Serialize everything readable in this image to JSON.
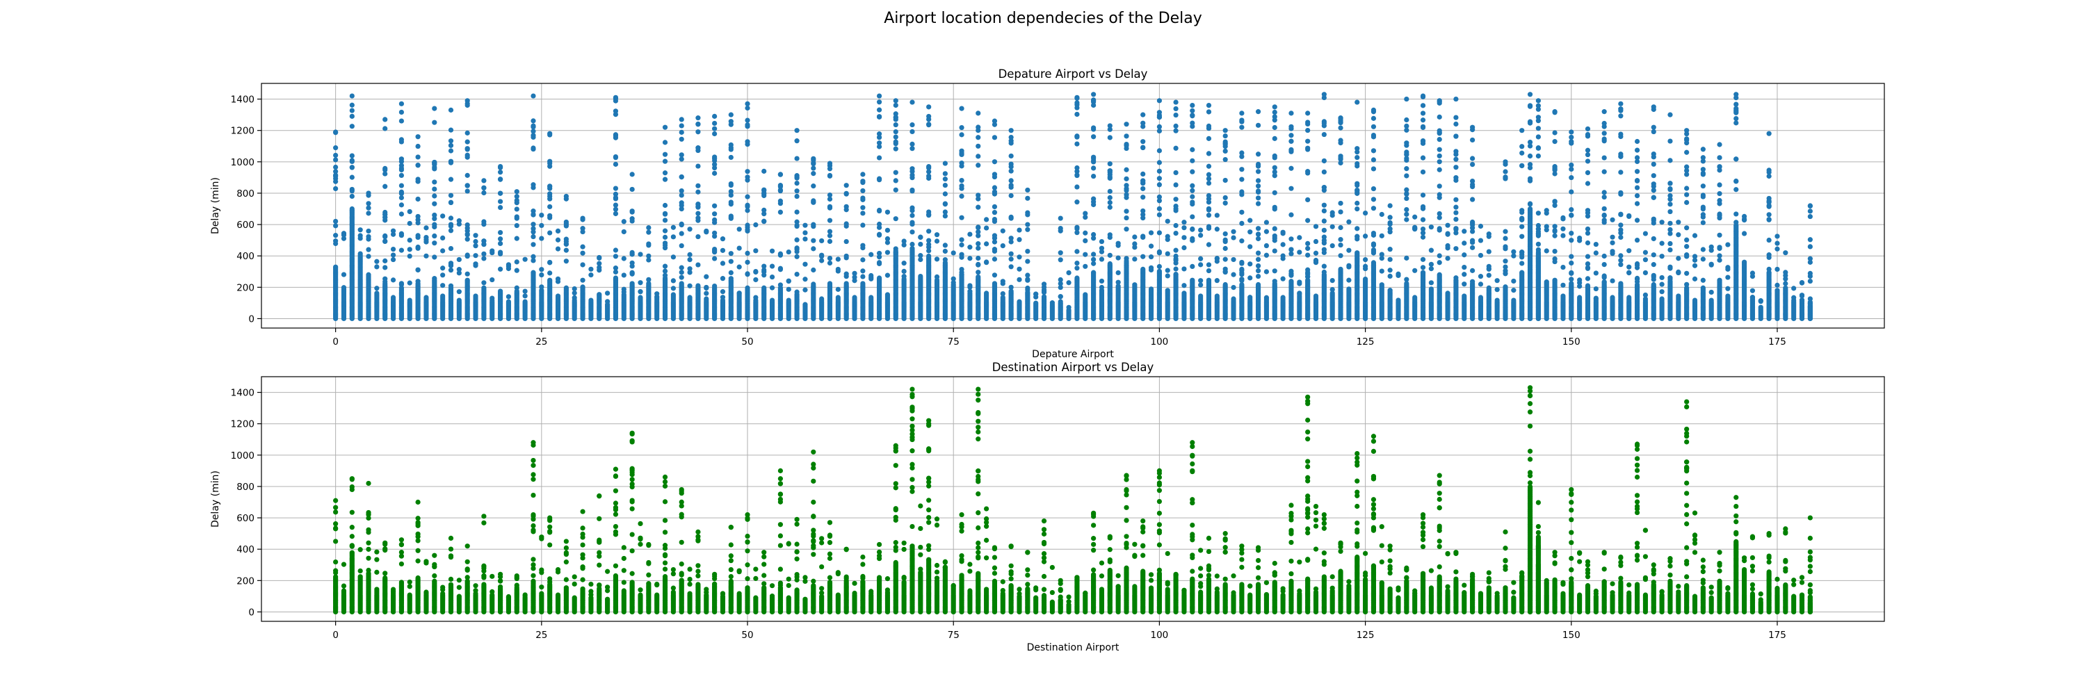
{
  "figure": {
    "suptitle": "Airport location dependecies of the Delay"
  },
  "chart_data": [
    {
      "type": "scatter",
      "title": "Depature Airport vs Delay",
      "xlabel": "Depature Airport",
      "ylabel": "Delay (min)",
      "xlim": [
        -9,
        188
      ],
      "ylim": [
        -60,
        1500
      ],
      "xticks": [
        0,
        25,
        50,
        75,
        100,
        125,
        150,
        175
      ],
      "yticks": [
        0,
        200,
        400,
        600,
        800,
        1000,
        1200,
        1400
      ],
      "grid": true,
      "color": "#1f77b4",
      "series": [
        {
          "x": [
            0,
            2,
            4,
            6,
            8,
            10,
            12,
            14,
            16,
            18,
            20,
            22,
            24,
            26,
            28,
            30,
            32,
            34,
            36,
            38,
            40,
            42,
            44,
            46,
            48,
            50,
            52,
            54,
            56,
            58,
            60,
            62,
            64,
            66,
            68,
            70,
            72,
            74,
            76,
            78,
            80,
            82,
            84,
            86,
            88,
            90,
            92,
            94,
            96,
            98,
            100,
            102,
            104,
            106,
            108,
            110,
            112,
            114,
            116,
            118,
            120,
            122,
            124,
            126,
            128,
            130,
            132,
            134,
            136,
            138,
            140,
            142,
            144,
            145,
            146,
            148,
            150,
            152,
            154,
            156,
            158,
            160,
            162,
            164,
            166,
            168,
            170,
            172,
            174,
            176,
            178,
            179
          ],
          "y_max": [
            1190,
            1420,
            800,
            1270,
            1370,
            1160,
            1340,
            1330,
            1390,
            880,
            970,
            810,
            1420,
            1180,
            780,
            640,
            390,
            1410,
            920,
            580,
            1220,
            1270,
            1280,
            1290,
            1300,
            1370,
            940,
            920,
            1200,
            1020,
            990,
            850,
            920,
            1420,
            1390,
            1380,
            1350,
            990,
            1340,
            1310,
            1260,
            1200,
            820,
            220,
            640,
            1410,
            1430,
            1230,
            1240,
            1300,
            1390,
            1380,
            1360,
            1360,
            1200,
            1310,
            1320,
            1350,
            1310,
            1310,
            1430,
            1280,
            1380,
            1330,
            720,
            1400,
            1420,
            1390,
            1400,
            1220,
            540,
            1000,
            1200,
            1430,
            1390,
            1320,
            1190,
            1210,
            1320,
            1370,
            1130,
            1350,
            1300,
            1200,
            1080,
            1110,
            1430,
            290,
            1180,
            420,
            230,
            720
          ],
          "y_dense": [
            330,
            700,
            280,
            230,
            200,
            230,
            250,
            200,
            250,
            200,
            180,
            180,
            300,
            250,
            200,
            200,
            160,
            260,
            230,
            230,
            260,
            230,
            210,
            200,
            250,
            200,
            200,
            200,
            160,
            210,
            230,
            230,
            230,
            260,
            420,
            450,
            400,
            360,
            280,
            270,
            230,
            180,
            170,
            140,
            100,
            260,
            300,
            350,
            360,
            320,
            300,
            280,
            250,
            250,
            220,
            220,
            220,
            230,
            240,
            250,
            280,
            320,
            420,
            360,
            180,
            230,
            300,
            280,
            240,
            230,
            200,
            200,
            300,
            700,
            400,
            250,
            230,
            210,
            230,
            230,
            220,
            220,
            240,
            200,
            200,
            250,
            600,
            130,
            300,
            200,
            120,
            110
          ]
        }
      ]
    },
    {
      "type": "scatter",
      "title": "Destination Airport vs Delay",
      "xlabel": "Destination Airport",
      "ylabel": "Delay (min)",
      "xlim": [
        -9,
        188
      ],
      "ylim": [
        -60,
        1500
      ],
      "xticks": [
        0,
        25,
        50,
        75,
        100,
        125,
        150,
        175
      ],
      "yticks": [
        0,
        200,
        400,
        600,
        800,
        1000,
        1200,
        1400
      ],
      "grid": true,
      "color": "#008000",
      "series": [
        {
          "x": [
            0,
            2,
            4,
            6,
            8,
            10,
            12,
            14,
            16,
            18,
            20,
            22,
            24,
            26,
            28,
            30,
            32,
            34,
            36,
            38,
            40,
            42,
            44,
            46,
            48,
            50,
            52,
            54,
            56,
            58,
            60,
            62,
            64,
            66,
            68,
            70,
            72,
            74,
            76,
            78,
            80,
            82,
            84,
            86,
            88,
            90,
            92,
            94,
            96,
            98,
            100,
            102,
            104,
            106,
            108,
            110,
            112,
            114,
            116,
            118,
            120,
            122,
            124,
            126,
            128,
            130,
            132,
            134,
            136,
            138,
            140,
            142,
            144,
            145,
            146,
            148,
            150,
            152,
            154,
            156,
            158,
            160,
            162,
            164,
            166,
            168,
            170,
            172,
            174,
            176,
            178,
            179
          ],
          "y_max": [
            710,
            850,
            820,
            440,
            460,
            700,
            360,
            470,
            420,
            610,
            240,
            230,
            1080,
            600,
            450,
            640,
            740,
            910,
            1140,
            430,
            860,
            780,
            510,
            240,
            540,
            620,
            380,
            900,
            590,
            1020,
            570,
            400,
            350,
            430,
            1060,
            1420,
            1220,
            320,
            620,
            1420,
            410,
            420,
            380,
            580,
            200,
            220,
            630,
            480,
            870,
            580,
            900,
            240,
            1080,
            470,
            500,
            420,
            410,
            310,
            680,
            1370,
            620,
            440,
            1010,
            1120,
            420,
            280,
            620,
            870,
            380,
            240,
            250,
            510,
            250,
            1430,
            420,
            380,
            780,
            320,
            380,
            350,
            1070,
            300,
            340,
            1340,
            330,
            380,
            730,
            480,
            500,
            530,
            220,
            600
          ],
          "y_dense": [
            230,
            380,
            250,
            220,
            190,
            220,
            200,
            170,
            200,
            180,
            150,
            150,
            200,
            180,
            160,
            150,
            140,
            230,
            190,
            180,
            220,
            200,
            180,
            170,
            200,
            160,
            160,
            160,
            140,
            170,
            190,
            190,
            190,
            210,
            320,
            420,
            330,
            280,
            230,
            250,
            200,
            170,
            150,
            110,
            80,
            200,
            240,
            270,
            280,
            260,
            250,
            230,
            210,
            210,
            180,
            180,
            180,
            190,
            200,
            210,
            230,
            260,
            350,
            300,
            150,
            200,
            250,
            230,
            200,
            190,
            160,
            160,
            220,
            800,
            300,
            200,
            190,
            170,
            190,
            190,
            180,
            180,
            200,
            170,
            160,
            200,
            450,
            110,
            250,
            170,
            100,
            90
          ]
        }
      ]
    }
  ]
}
